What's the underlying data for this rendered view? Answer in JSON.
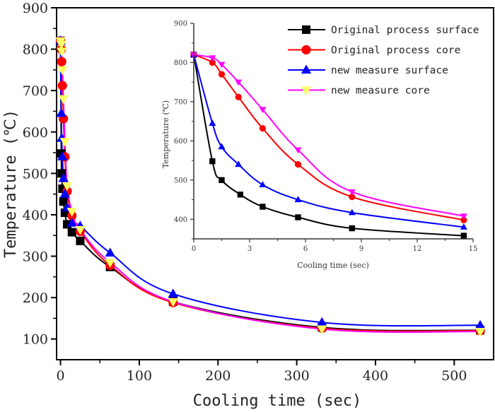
{
  "chart_data": [
    {
      "id": "main",
      "type": "line",
      "title": "",
      "xlabel": "Cooling time (sec)",
      "ylabel": "Temperature (℃)",
      "xlim": [
        -5,
        550
      ],
      "ylim": [
        50,
        900
      ],
      "xticks": [
        0,
        100,
        200,
        300,
        400,
        500
      ],
      "yticks": [
        100,
        200,
        300,
        400,
        500,
        600,
        700,
        800,
        900
      ],
      "grid": false,
      "series": [
        {
          "name": "Original process surface",
          "color": "#000000",
          "marker": "square",
          "marker_color": "#000000",
          "x": [
            0,
            1,
            1.5,
            2.5,
            3.7,
            5.6,
            8.5,
            14.5,
            25,
            63,
            143,
            332,
            533
          ],
          "y": [
            820,
            548,
            500,
            463,
            432,
            405,
            377,
            358,
            337,
            274,
            190,
            128,
            121
          ]
        },
        {
          "name": "Original process core",
          "color": "#ff0000",
          "marker": "circle",
          "marker_color": "#ff0000",
          "x": [
            0,
            1,
            1.5,
            2.4,
            3.7,
            5.6,
            8.5,
            14.5,
            25,
            63,
            143,
            332,
            533
          ],
          "y": [
            820,
            800,
            770,
            712,
            632,
            540,
            457,
            398,
            360,
            278,
            188,
            126,
            120
          ]
        },
        {
          "name": "new measure surface",
          "color": "#0000ff",
          "marker": "triangle-up",
          "marker_color": "#0000ff",
          "x": [
            0,
            1,
            1.5,
            2.4,
            3.7,
            5.6,
            8.5,
            14.5,
            25,
            63,
            143,
            332,
            533
          ],
          "y": [
            820,
            645,
            585,
            540,
            488,
            450,
            417,
            380,
            373,
            308,
            209,
            140,
            133
          ]
        },
        {
          "name": "new measure core",
          "color": "#ff00ff",
          "marker": "triangle-down",
          "marker_color": "#ffff66",
          "x": [
            0,
            1,
            1.5,
            2.4,
            3.7,
            5.6,
            8.5,
            14.5,
            25,
            63,
            143,
            332,
            533
          ],
          "y": [
            820,
            812,
            795,
            750,
            680,
            577,
            470,
            408,
            364,
            285,
            190,
            124,
            118
          ]
        }
      ],
      "legend": {
        "position": "top-right",
        "entries": [
          "Original process surface",
          "Original process core",
          "new measure surface",
          "new measure core"
        ]
      }
    },
    {
      "id": "inset",
      "type": "line",
      "title": "",
      "xlabel": "Cooling time (sec)",
      "ylabel": "Temperature (℃)",
      "xlim": [
        0,
        15
      ],
      "ylim": [
        350,
        900
      ],
      "xticks": [
        0,
        3,
        6,
        9,
        12,
        15
      ],
      "yticks": [
        400,
        500,
        600,
        700,
        800,
        900
      ],
      "grid": false,
      "series": [
        {
          "name": "Original process surface",
          "color": "#000000",
          "marker": "square",
          "marker_color": "#000000",
          "x": [
            0,
            1,
            1.5,
            2.5,
            3.7,
            5.6,
            8.5,
            14.5
          ],
          "y": [
            820,
            548,
            500,
            463,
            432,
            405,
            377,
            358
          ]
        },
        {
          "name": "Original process core",
          "color": "#ff0000",
          "marker": "circle",
          "marker_color": "#ff0000",
          "x": [
            0,
            1,
            1.5,
            2.4,
            3.7,
            5.6,
            8.5,
            14.5
          ],
          "y": [
            820,
            800,
            770,
            712,
            632,
            540,
            457,
            398
          ]
        },
        {
          "name": "new measure surface",
          "color": "#0000ff",
          "marker": "triangle-up",
          "marker_color": "#0000ff",
          "x": [
            0,
            1,
            1.5,
            2.4,
            3.7,
            5.6,
            8.5,
            14.5
          ],
          "y": [
            820,
            645,
            585,
            540,
            488,
            450,
            417,
            380
          ]
        },
        {
          "name": "new measure core",
          "color": "#ff00ff",
          "marker": "triangle-down",
          "marker_color": "#ff00ff",
          "x": [
            0,
            1,
            1.5,
            2.4,
            3.7,
            5.6,
            8.5,
            14.5
          ],
          "y": [
            820,
            812,
            795,
            750,
            680,
            577,
            470,
            408
          ]
        }
      ]
    }
  ]
}
